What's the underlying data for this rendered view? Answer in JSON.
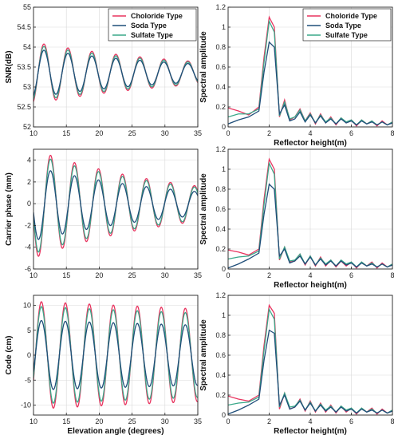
{
  "colors": {
    "chloride": "#e8335e",
    "soda": "#1f4e79",
    "sulfate": "#3aa889"
  },
  "chart_data": [
    {
      "type": "line",
      "xlabel": "",
      "ylabel": "SNR(dB)",
      "xlim": [
        10,
        35
      ],
      "ylim": [
        52,
        55
      ],
      "xticks": [
        10,
        15,
        20,
        25,
        30,
        35
      ],
      "yticks": [
        52,
        52.5,
        53,
        53.5,
        54,
        54.5,
        55
      ],
      "grid": true,
      "legend": "top-right",
      "wave": {
        "center": 53.35,
        "period": 3.65,
        "phase": 11.6,
        "decay": 0.04,
        "shapes": "peak"
      },
      "series": [
        {
          "name": "Choloride Type",
          "key": "chloride",
          "amp": 1.55
        },
        {
          "name": "Soda Type",
          "key": "soda",
          "amp": 1.22
        },
        {
          "name": "Sulfate Type",
          "key": "sulfate",
          "amp": 1.42
        }
      ]
    },
    {
      "type": "line",
      "xlabel": "Reflector height(m)",
      "ylabel": "Spectral amplitude",
      "xlim": [
        0,
        8
      ],
      "ylim": [
        0,
        1.2
      ],
      "xticks": [
        0,
        2,
        4,
        6,
        8
      ],
      "yticks": [
        0,
        0.2,
        0.4,
        0.6,
        0.8,
        1,
        1.2
      ],
      "grid": true,
      "legend": "top-right",
      "x": [
        0,
        0.5,
        1,
        1.5,
        1.75,
        2,
        2.25,
        2.5,
        2.75,
        3,
        3.25,
        3.5,
        3.75,
        4,
        4.25,
        4.5,
        4.75,
        5,
        5.25,
        5.5,
        5.75,
        6,
        6.25,
        6.5,
        6.75,
        7,
        7.25,
        7.5,
        7.75,
        8
      ],
      "series": [
        {
          "name": "Choloride Type",
          "key": "chloride",
          "values": [
            0.19,
            0.16,
            0.12,
            0.2,
            0.7,
            1.1,
            1.0,
            0.1,
            0.27,
            0.07,
            0.1,
            0.18,
            0.06,
            0.14,
            0.03,
            0.13,
            0.04,
            0.1,
            0.02,
            0.09,
            0.04,
            0.07,
            0.01,
            0.07,
            0.03,
            0.06,
            0.01,
            0.06,
            0.02,
            0.05
          ]
        },
        {
          "name": "Soda Type",
          "key": "soda",
          "values": [
            0.03,
            0.07,
            0.1,
            0.16,
            0.55,
            0.85,
            0.8,
            0.13,
            0.22,
            0.06,
            0.08,
            0.15,
            0.05,
            0.12,
            0.04,
            0.11,
            0.04,
            0.08,
            0.03,
            0.08,
            0.04,
            0.06,
            0.02,
            0.06,
            0.03,
            0.05,
            0.02,
            0.05,
            0.02,
            0.04
          ]
        },
        {
          "name": "Sulfate Type",
          "key": "sulfate",
          "values": [
            0.1,
            0.13,
            0.13,
            0.18,
            0.65,
            1.06,
            0.95,
            0.11,
            0.25,
            0.08,
            0.1,
            0.17,
            0.06,
            0.13,
            0.04,
            0.12,
            0.05,
            0.09,
            0.03,
            0.09,
            0.05,
            0.07,
            0.02,
            0.07,
            0.03,
            0.06,
            0.02,
            0.05,
            0.02,
            0.05
          ]
        }
      ]
    },
    {
      "type": "line",
      "xlabel": "",
      "ylabel": "Carrier phase (mm)",
      "xlim": [
        10,
        35
      ],
      "ylim": [
        -6,
        5
      ],
      "xticks": [
        10,
        15,
        20,
        25,
        30,
        35
      ],
      "yticks": [
        -6,
        -4,
        -2,
        0,
        2,
        4
      ],
      "grid": true,
      "legend": "none",
      "wave": {
        "center": 0,
        "period": 3.65,
        "phase": 12.6,
        "decay": 0.045,
        "shapes": "sine"
      },
      "series": [
        {
          "name": "Choloride Type",
          "key": "chloride",
          "amp": 5.0
        },
        {
          "name": "Soda Type",
          "key": "soda",
          "amp": 3.4
        },
        {
          "name": "Sulfate Type",
          "key": "sulfate",
          "amp": 4.6
        }
      ]
    },
    {
      "type": "line",
      "xlabel": "Reflector height(m)",
      "ylabel": "Spectral amplitude",
      "xlim": [
        0,
        8
      ],
      "ylim": [
        0,
        1.2
      ],
      "xticks": [
        0,
        2,
        4,
        6,
        8
      ],
      "yticks": [
        0,
        0.2,
        0.4,
        0.6,
        0.8,
        1,
        1.2
      ],
      "grid": true,
      "legend": "none",
      "x": [
        0,
        0.5,
        1,
        1.5,
        1.75,
        2,
        2.25,
        2.5,
        2.75,
        3,
        3.25,
        3.5,
        3.75,
        4,
        4.25,
        4.5,
        4.75,
        5,
        5.25,
        5.5,
        5.75,
        6,
        6.25,
        6.5,
        6.75,
        7,
        7.25,
        7.5,
        7.75,
        8
      ],
      "series": [
        {
          "name": "Choloride Type",
          "key": "chloride",
          "values": [
            0.19,
            0.17,
            0.14,
            0.2,
            0.7,
            1.1,
            1.0,
            0.09,
            0.22,
            0.07,
            0.08,
            0.15,
            0.04,
            0.13,
            0.03,
            0.12,
            0.03,
            0.09,
            0.02,
            0.08,
            0.03,
            0.07,
            0.01,
            0.07,
            0.03,
            0.07,
            0.01,
            0.06,
            0.02,
            0.05
          ]
        },
        {
          "name": "Soda Type",
          "key": "soda",
          "values": [
            0.01,
            0.05,
            0.1,
            0.16,
            0.55,
            0.85,
            0.8,
            0.13,
            0.2,
            0.06,
            0.08,
            0.13,
            0.05,
            0.12,
            0.04,
            0.1,
            0.04,
            0.08,
            0.03,
            0.08,
            0.04,
            0.06,
            0.02,
            0.06,
            0.03,
            0.05,
            0.02,
            0.05,
            0.02,
            0.04
          ]
        },
        {
          "name": "Sulfate Type",
          "key": "sulfate",
          "values": [
            0.1,
            0.12,
            0.13,
            0.18,
            0.65,
            1.06,
            0.95,
            0.1,
            0.22,
            0.08,
            0.09,
            0.15,
            0.05,
            0.13,
            0.04,
            0.11,
            0.05,
            0.09,
            0.03,
            0.09,
            0.05,
            0.07,
            0.02,
            0.07,
            0.03,
            0.06,
            0.02,
            0.05,
            0.02,
            0.05
          ]
        }
      ]
    },
    {
      "type": "line",
      "xlabel": "Elevation angle (degrees)",
      "ylabel": "Code (cm)",
      "xlim": [
        10,
        35
      ],
      "ylim": [
        -12,
        12
      ],
      "xticks": [
        10,
        15,
        20,
        25,
        30,
        35
      ],
      "yticks": [
        -10,
        -5,
        0,
        5,
        10
      ],
      "grid": true,
      "legend": "none",
      "wave": {
        "center": 0,
        "period": 3.65,
        "phase": 11.2,
        "decay": 0.006,
        "shapes": "sine"
      },
      "series": [
        {
          "name": "Choloride Type",
          "key": "chloride",
          "amp": 10.8
        },
        {
          "name": "Soda Type",
          "key": "soda",
          "amp": 7.0
        },
        {
          "name": "Sulfate Type",
          "key": "sulfate",
          "amp": 9.8
        }
      ]
    },
    {
      "type": "line",
      "xlabel": "Reflector height(m)",
      "ylabel": "Spectral amplitude",
      "xlim": [
        0,
        8
      ],
      "ylim": [
        0,
        1.2
      ],
      "xticks": [
        0,
        2,
        4,
        6,
        8
      ],
      "yticks": [
        0,
        0.2,
        0.4,
        0.6,
        0.8,
        1,
        1.2
      ],
      "grid": true,
      "legend": "none",
      "x": [
        0,
        0.5,
        1,
        1.5,
        1.75,
        2,
        2.25,
        2.5,
        2.75,
        3,
        3.25,
        3.5,
        3.75,
        4,
        4.25,
        4.5,
        4.75,
        5,
        5.25,
        5.5,
        5.75,
        6,
        6.25,
        6.5,
        6.75,
        7,
        7.25,
        7.5,
        7.75,
        8
      ],
      "series": [
        {
          "name": "Choloride Type",
          "key": "chloride",
          "values": [
            0.19,
            0.16,
            0.14,
            0.2,
            0.7,
            1.1,
            1.02,
            0.06,
            0.22,
            0.06,
            0.08,
            0.16,
            0.04,
            0.14,
            0.03,
            0.12,
            0.03,
            0.1,
            0.02,
            0.09,
            0.03,
            0.07,
            0.01,
            0.07,
            0.03,
            0.07,
            0.01,
            0.06,
            0.02,
            0.05
          ]
        },
        {
          "name": "Soda Type",
          "key": "soda",
          "values": [
            0.01,
            0.05,
            0.1,
            0.16,
            0.55,
            0.85,
            0.82,
            0.1,
            0.2,
            0.06,
            0.08,
            0.14,
            0.05,
            0.12,
            0.04,
            0.1,
            0.04,
            0.08,
            0.03,
            0.08,
            0.04,
            0.06,
            0.02,
            0.06,
            0.03,
            0.05,
            0.02,
            0.05,
            0.02,
            0.04
          ]
        },
        {
          "name": "Sulfate Type",
          "key": "sulfate",
          "values": [
            0.1,
            0.12,
            0.13,
            0.18,
            0.65,
            1.06,
            0.96,
            0.08,
            0.22,
            0.08,
            0.09,
            0.15,
            0.05,
            0.13,
            0.04,
            0.11,
            0.05,
            0.09,
            0.03,
            0.09,
            0.05,
            0.07,
            0.02,
            0.07,
            0.03,
            0.06,
            0.02,
            0.05,
            0.02,
            0.05
          ]
        }
      ]
    }
  ]
}
